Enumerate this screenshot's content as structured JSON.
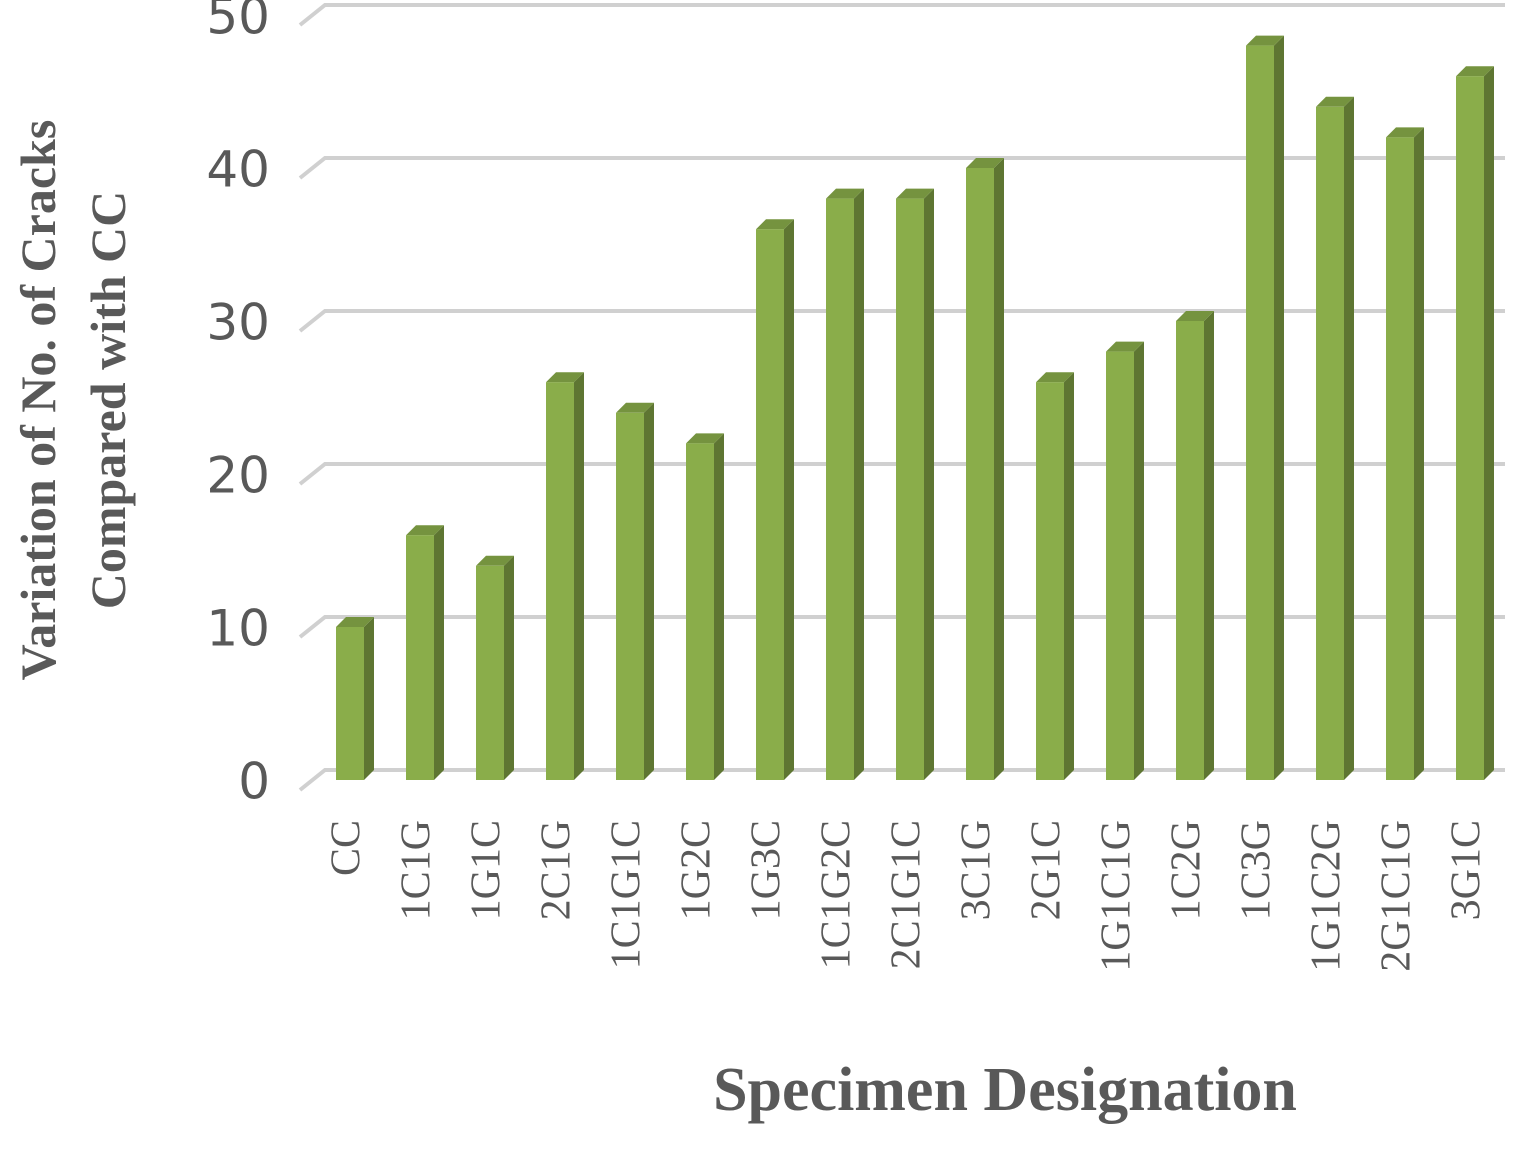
{
  "chart_data": {
    "type": "bar",
    "x_label": "Specimen Designation",
    "y_label": [
      "Variation of  No. of Cracks",
      "Compared with CC"
    ],
    "categories": [
      "CC",
      "1C1G",
      "1G1C",
      "2C1G",
      "1C1G1C",
      "1G2C",
      "1G3C",
      "1C1G2C",
      "2C1G1C",
      "3C1G",
      "2G1C",
      "1G1C1G",
      "1C2G",
      "1C3G",
      "1G1C2G",
      "2G1C1G",
      "3G1C"
    ],
    "values": [
      10,
      16,
      14,
      26,
      24,
      22,
      36,
      38,
      38,
      40,
      26,
      28,
      30,
      48,
      44,
      42,
      46
    ],
    "color": "#8aad4a",
    "ylim": [
      0,
      50
    ],
    "yticks": [
      0,
      10,
      20,
      30,
      40,
      50
    ],
    "grid": true
  }
}
